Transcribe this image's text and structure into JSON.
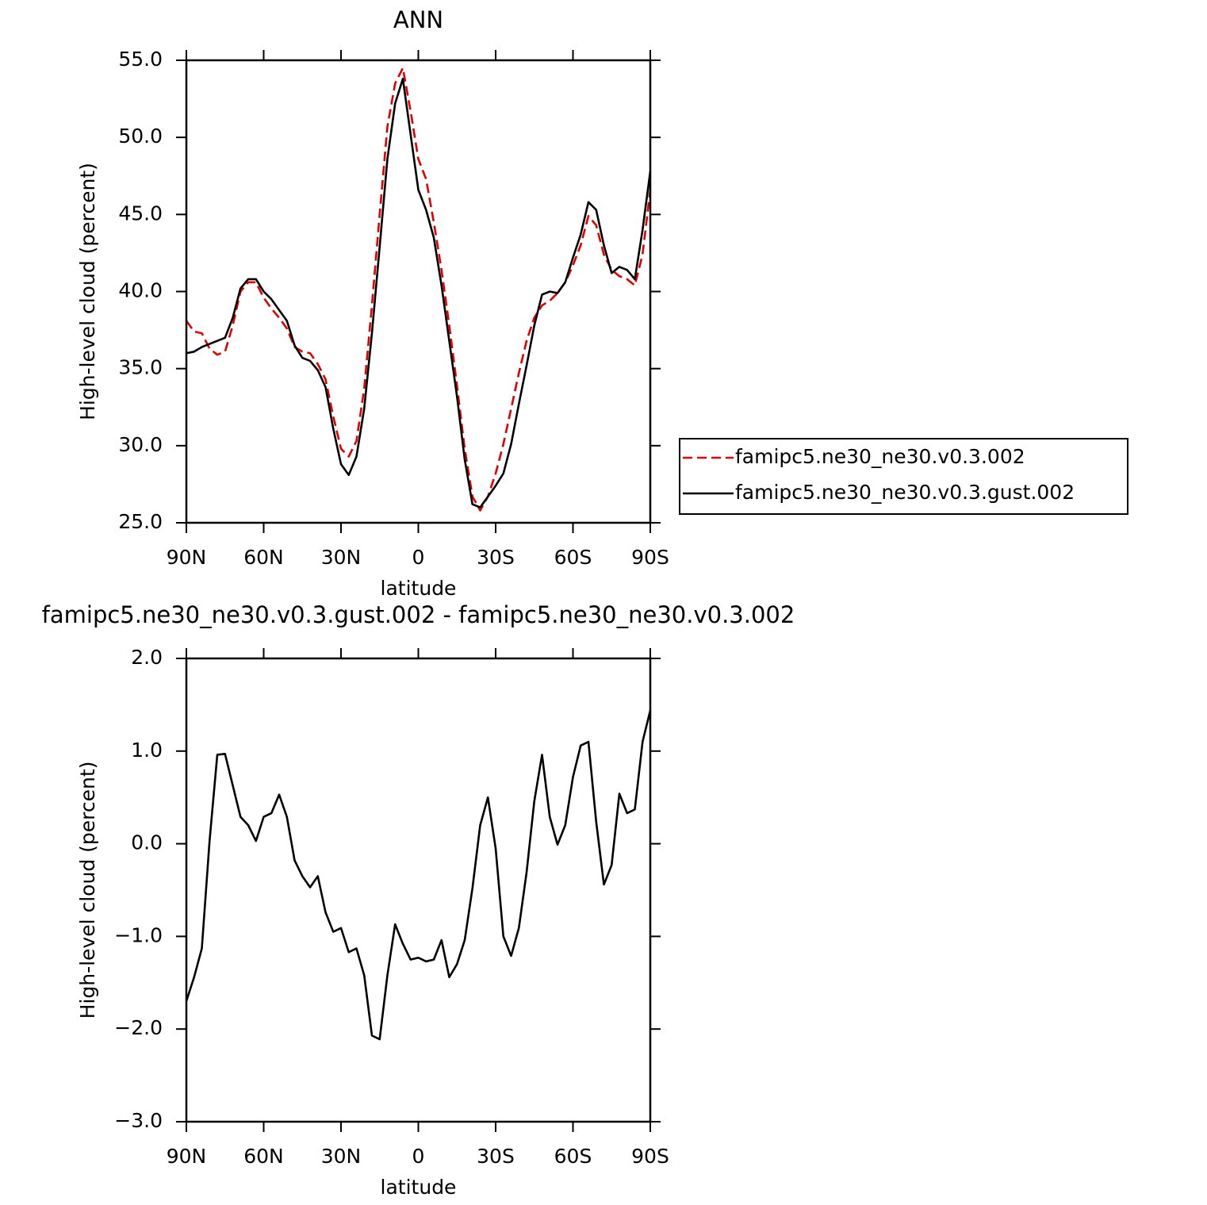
{
  "chart_data": [
    {
      "type": "line",
      "title": "ANN",
      "x_label": "latitude",
      "y_label": "High-level cloud (percent)",
      "x": [
        90,
        87,
        84,
        81,
        78,
        75,
        72,
        69,
        66,
        63,
        60,
        57,
        54,
        51,
        48,
        45,
        42,
        39,
        36,
        33,
        30,
        27,
        24,
        21,
        18,
        15,
        12,
        9,
        6,
        3,
        0,
        -3,
        -6,
        -9,
        -12,
        -15,
        -18,
        -21,
        -24,
        -27,
        -30,
        -33,
        -36,
        -39,
        -42,
        -45,
        -48,
        -51,
        -54,
        -57,
        -60,
        -63,
        -66,
        -69,
        -72,
        -75,
        -78,
        -81,
        -84,
        -87,
        -90
      ],
      "xlim": [
        90,
        -90
      ],
      "xticks": [
        {
          "value": 90,
          "label": "90N"
        },
        {
          "value": 60,
          "label": "60N"
        },
        {
          "value": 30,
          "label": "30N"
        },
        0,
        {
          "value": -30,
          "label": "30S"
        },
        {
          "value": -60,
          "label": "60S"
        },
        {
          "value": -90,
          "label": "90S"
        }
      ],
      "ylim": [
        25,
        55
      ],
      "yticks": [
        {
          "value": 25,
          "label": "25.0"
        },
        {
          "value": 30,
          "label": "30.0"
        },
        {
          "value": 35,
          "label": "35.0"
        },
        {
          "value": 40,
          "label": "40.0"
        },
        {
          "value": 45,
          "label": "45.0"
        },
        {
          "value": 50,
          "label": "50.0"
        },
        {
          "value": 55,
          "label": "55.0"
        }
      ],
      "legend": "outside-right",
      "series": [
        {
          "name": "famipc5.ne30_ne30.v0.3.002",
          "color": "#e00000",
          "dash": "dashed",
          "values": [
            38.1,
            37.4,
            37.3,
            36.3,
            35.9,
            36.1,
            37.8,
            40.0,
            40.6,
            40.6,
            39.6,
            38.9,
            38.3,
            37.6,
            36.4,
            36.1,
            36.0,
            35.3,
            34.3,
            31.9,
            29.8,
            29.3,
            30.3,
            33.7,
            39.1,
            45.0,
            50.7,
            53.5,
            54.5,
            51.7,
            48.6,
            47.3,
            44.5,
            41.4,
            37.8,
            33.9,
            29.8,
            26.7,
            25.8,
            26.7,
            28.2,
            30.1,
            32.4,
            34.7,
            36.8,
            38.3,
            39.1,
            39.4,
            39.9,
            40.6,
            41.7,
            43.0,
            44.9,
            44.3,
            42.4,
            41.4,
            41.0,
            40.8,
            40.4,
            42.4,
            46.6
          ]
        },
        {
          "name": "famipc5.ne30_ne30.v0.3.gust.002",
          "color": "#000000",
          "dash": "solid",
          "values": [
            36.0,
            36.1,
            36.4,
            36.6,
            36.8,
            37.0,
            38.3,
            40.2,
            40.8,
            40.8,
            40.0,
            39.5,
            38.8,
            38.1,
            36.5,
            35.7,
            35.5,
            34.9,
            33.8,
            31.1,
            28.8,
            28.1,
            29.3,
            32.4,
            37.3,
            42.9,
            48.6,
            52.2,
            53.8,
            50.2,
            46.6,
            45.3,
            43.5,
            40.4,
            36.8,
            33.2,
            29.1,
            26.2,
            26.0,
            26.7,
            27.4,
            28.2,
            30.1,
            32.7,
            35.2,
            37.8,
            39.8,
            40.0,
            39.9,
            40.6,
            42.2,
            43.7,
            45.8,
            45.3,
            43.0,
            41.2,
            41.6,
            41.4,
            40.8,
            44.0,
            47.8
          ]
        }
      ]
    },
    {
      "type": "line",
      "title": "famipc5.ne30_ne30.v0.3.gust.002 - famipc5.ne30_ne30.v0.3.002",
      "x_label": "latitude",
      "y_label": "High-level cloud (percent)",
      "x": [
        90,
        87,
        84,
        81,
        78,
        75,
        72,
        69,
        66,
        63,
        60,
        57,
        54,
        51,
        48,
        45,
        42,
        39,
        36,
        33,
        30,
        27,
        24,
        21,
        18,
        15,
        12,
        9,
        6,
        3,
        0,
        -3,
        -6,
        -9,
        -12,
        -15,
        -18,
        -21,
        -24,
        -27,
        -30,
        -33,
        -36,
        -39,
        -42,
        -45,
        -48,
        -51,
        -54,
        -57,
        -60,
        -63,
        -66,
        -69,
        -72,
        -75,
        -78,
        -81,
        -84,
        -87,
        -90
      ],
      "xlim": [
        90,
        -90
      ],
      "xticks": [
        {
          "value": 90,
          "label": "90N"
        },
        {
          "value": 60,
          "label": "60N"
        },
        {
          "value": 30,
          "label": "30N"
        },
        0,
        {
          "value": -30,
          "label": "30S"
        },
        {
          "value": -60,
          "label": "60S"
        },
        {
          "value": -90,
          "label": "90S"
        }
      ],
      "ylim": [
        -3,
        2
      ],
      "yticks": [
        {
          "value": -3,
          "label": "−3.0"
        },
        {
          "value": -2,
          "label": "−2.0"
        },
        {
          "value": -1,
          "label": "−1.0"
        },
        {
          "value": 0,
          "label": "0.0"
        },
        {
          "value": 1,
          "label": "1.0"
        },
        {
          "value": 2,
          "label": "2.0"
        }
      ],
      "series": [
        {
          "color": "#000000",
          "dash": "solid",
          "values": [
            -1.7,
            -1.44,
            -1.13,
            0.03,
            0.96,
            0.97,
            0.63,
            0.29,
            0.2,
            0.03,
            0.29,
            0.33,
            0.53,
            0.29,
            -0.18,
            -0.35,
            -0.47,
            -0.35,
            -0.74,
            -0.95,
            -0.91,
            -1.17,
            -1.13,
            -1.42,
            -2.07,
            -2.11,
            -1.42,
            -0.87,
            -1.08,
            -1.25,
            -1.23,
            -1.27,
            -1.25,
            -1.04,
            -1.44,
            -1.3,
            -1.04,
            -0.48,
            0.2,
            0.5,
            -0.05,
            -1.0,
            -1.21,
            -0.91,
            -0.31,
            0.46,
            0.96,
            0.29,
            -0.01,
            0.2,
            0.72,
            1.06,
            1.1,
            0.24,
            -0.44,
            -0.23,
            0.54,
            0.33,
            0.37,
            1.1,
            1.44
          ]
        }
      ]
    }
  ]
}
